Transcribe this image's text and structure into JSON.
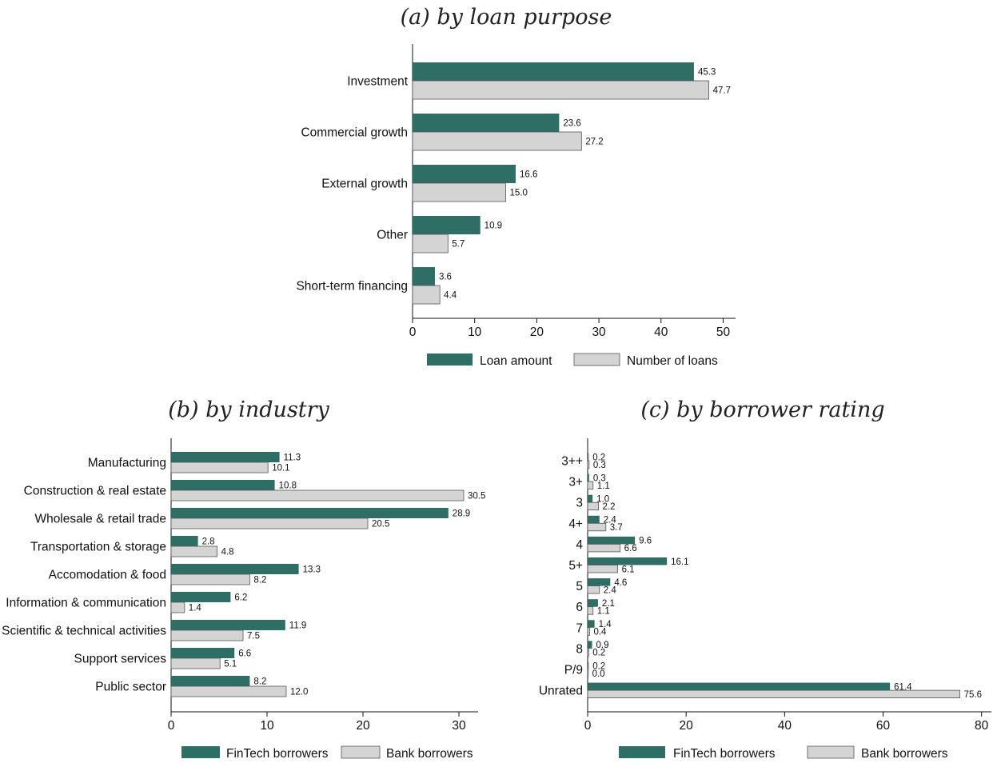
{
  "colors": {
    "primary": "#2e6e65",
    "secondary": "#d4d4d4",
    "secondary_stroke": "#555555"
  },
  "chart_data": [
    {
      "id": "a",
      "type": "bar",
      "orientation": "horizontal",
      "title": "(a) by loan purpose",
      "categories": [
        "Investment",
        "Commercial growth",
        "External growth",
        "Other",
        "Short-term financing"
      ],
      "series": [
        {
          "name": "Loan amount",
          "values": [
            45.3,
            23.6,
            16.6,
            10.9,
            3.6
          ],
          "labels": [
            "45.3",
            "23.6",
            "16.6",
            "10.9",
            "3.6"
          ]
        },
        {
          "name": "Number of loans",
          "values": [
            47.7,
            27.2,
            15.0,
            5.7,
            4.4
          ],
          "labels": [
            "47.7",
            "27.2",
            "15.0",
            "5.7",
            "4.4"
          ]
        }
      ],
      "xlim": [
        0,
        52
      ],
      "xticks": [
        0,
        10,
        20,
        30,
        40,
        50
      ],
      "xlabel": "",
      "ylabel": "",
      "grid": false,
      "legend": "bottom"
    },
    {
      "id": "b",
      "type": "bar",
      "orientation": "horizontal",
      "title": "(b) by industry",
      "categories": [
        "Manufacturing",
        "Construction & real estate",
        "Wholesale & retail trade",
        "Transportation & storage",
        "Accomodation & food",
        "Information & communication",
        "Scientific & technical activities",
        "Support services",
        "Public sector"
      ],
      "series": [
        {
          "name": "FinTech borrowers",
          "values": [
            11.3,
            10.8,
            28.9,
            2.8,
            13.3,
            6.2,
            11.9,
            6.6,
            8.2
          ],
          "labels": [
            "11.3",
            "10.8",
            "28.9",
            "2.8",
            "13.3",
            "6.2",
            "11.9",
            "6.6",
            "8.2"
          ]
        },
        {
          "name": "Bank borrowers",
          "values": [
            10.1,
            30.5,
            20.5,
            4.8,
            8.2,
            1.4,
            7.5,
            5.1,
            12.0
          ],
          "labels": [
            "10.1",
            "30.5",
            "20.5",
            "4.8",
            "8.2",
            "1.4",
            "7.5",
            "5.1",
            "12.0"
          ]
        }
      ],
      "xlim": [
        0,
        32
      ],
      "xticks": [
        0,
        10,
        20,
        30
      ],
      "xlabel": "",
      "ylabel": "",
      "grid": false,
      "legend": "bottom"
    },
    {
      "id": "c",
      "type": "bar",
      "orientation": "horizontal",
      "title": "(c) by borrower rating",
      "categories": [
        "3++",
        "3+",
        "3",
        "4+",
        "4",
        "5+",
        "5",
        "6",
        "7",
        "8",
        "P/9",
        "Unrated"
      ],
      "series": [
        {
          "name": "FinTech borrowers",
          "values": [
            0.2,
            0.3,
            1.0,
            2.4,
            9.6,
            16.1,
            4.6,
            2.1,
            1.4,
            0.9,
            0.2,
            61.4
          ],
          "labels": [
            "0.2",
            "0.3",
            "1.0",
            "2.4",
            "9.6",
            "16.1",
            "4.6",
            "2.1",
            "1.4",
            "0.9",
            "0.2",
            "61.4"
          ]
        },
        {
          "name": "Bank borrowers",
          "values": [
            0.3,
            1.1,
            2.2,
            3.7,
            6.6,
            6.1,
            2.4,
            1.1,
            0.4,
            0.2,
            0.0,
            75.6
          ],
          "labels": [
            "0.3",
            "1.1",
            "2.2",
            "3.7",
            "6.6",
            "6.1",
            "2.4",
            "1.1",
            "0.4",
            "0.2",
            "0.0",
            "75.6"
          ]
        }
      ],
      "xlim": [
        0,
        82
      ],
      "xticks": [
        0,
        20,
        40,
        60,
        80
      ],
      "xlabel": "",
      "ylabel": "",
      "grid": false,
      "legend": "bottom"
    }
  ]
}
